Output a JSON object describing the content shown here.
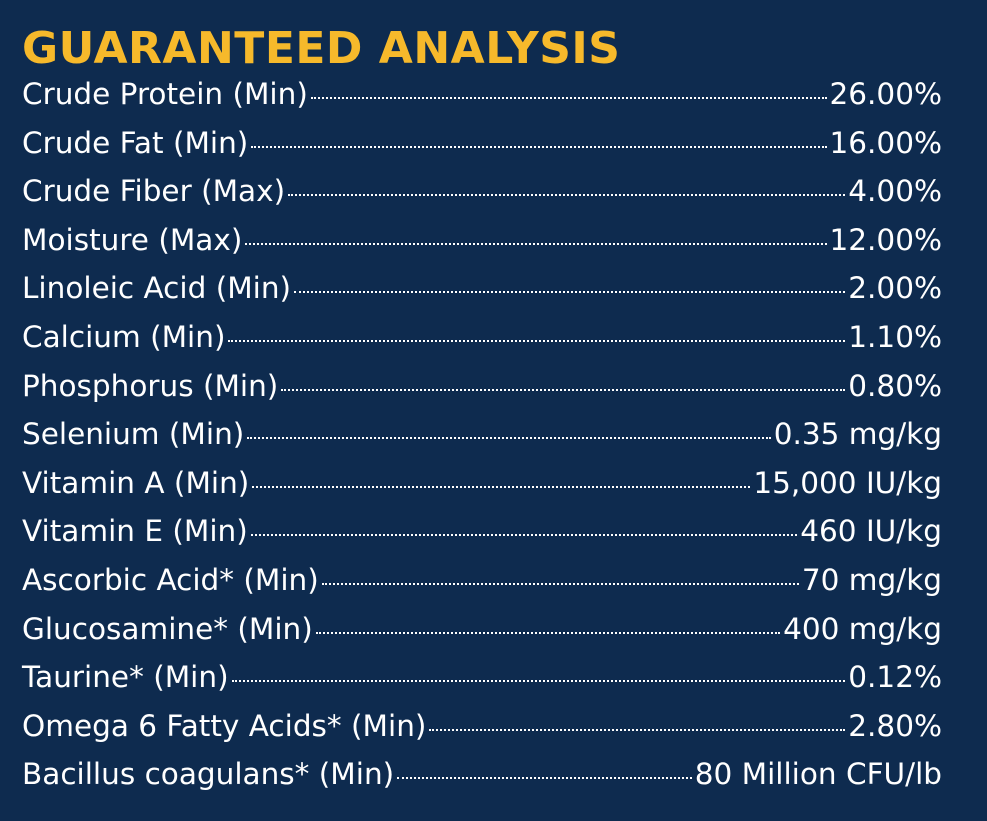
{
  "title": "GUARANTEED ANALYSIS",
  "rows": [
    {
      "label": "Crude Protein (Min)",
      "value": "26.00%"
    },
    {
      "label": "Crude Fat (Min)",
      "value": "16.00%"
    },
    {
      "label": "Crude Fiber (Max)",
      "value": "4.00%"
    },
    {
      "label": "Moisture (Max)",
      "value": "12.00%"
    },
    {
      "label": "Linoleic Acid (Min)",
      "value": "2.00%"
    },
    {
      "label": "Calcium (Min)",
      "value": "1.10%"
    },
    {
      "label": "Phosphorus (Min)",
      "value": "0.80%"
    },
    {
      "label": "Selenium (Min)",
      "value": "0.35 mg/kg"
    },
    {
      "label": "Vitamin A (Min)",
      "value": "15,000 IU/kg"
    },
    {
      "label": "Vitamin E (Min)",
      "value": "460 IU/kg"
    },
    {
      "label": "Ascorbic Acid* (Min)",
      "value": "70 mg/kg"
    },
    {
      "label": "Glucosamine* (Min)",
      "value": "400 mg/kg"
    },
    {
      "label": "Taurine* (Min)",
      "value": "0.12%"
    },
    {
      "label": "Omega 6 Fatty Acids* (Min)",
      "value": "2.80%"
    },
    {
      "label": "Bacillus coagulans* (Min)",
      "value": "80 Million CFU/lb"
    }
  ],
  "colors": {
    "background": "#0e2b4f",
    "title": "#f6b92b",
    "text": "#ffffff"
  }
}
